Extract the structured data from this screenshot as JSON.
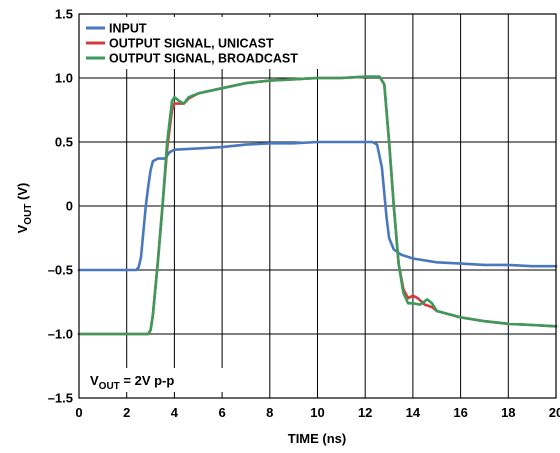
{
  "chart_data": {
    "type": "line",
    "xlabel": "TIME (ns)",
    "ylabel": {
      "main": "V",
      "sub": "OUT",
      "unit": " (V)"
    },
    "xlim": [
      0,
      20
    ],
    "ylim": [
      -1.5,
      1.5
    ],
    "x_ticks": [
      0,
      2,
      4,
      6,
      8,
      10,
      12,
      14,
      16,
      18,
      20
    ],
    "x_tick_labels": [
      "0",
      "2",
      "4",
      "6",
      "8",
      "10",
      "12",
      "14",
      "16",
      "18",
      "20"
    ],
    "y_ticks": [
      -1.5,
      -1.0,
      -0.5,
      0,
      0.5,
      1.0,
      1.5
    ],
    "y_tick_labels": [
      "–1.5",
      "–1.0",
      "–0.5",
      "0",
      "0.5",
      "1.0",
      "1.5"
    ],
    "grid": true,
    "legend_position": "top-left",
    "annotation": {
      "main": "V",
      "sub": "OUT",
      "rest": " = 2V p-p"
    },
    "series": [
      {
        "name": "INPUT",
        "color": "#4a78be",
        "points": [
          [
            0,
            -0.5
          ],
          [
            1.5,
            -0.5
          ],
          [
            2.4,
            -0.5
          ],
          [
            2.5,
            -0.48
          ],
          [
            2.6,
            -0.4
          ],
          [
            2.7,
            -0.2
          ],
          [
            2.8,
            0.0
          ],
          [
            2.9,
            0.15
          ],
          [
            3.0,
            0.28
          ],
          [
            3.1,
            0.35
          ],
          [
            3.3,
            0.37
          ],
          [
            3.6,
            0.37
          ],
          [
            3.8,
            0.42
          ],
          [
            4.0,
            0.44
          ],
          [
            5,
            0.45
          ],
          [
            6,
            0.46
          ],
          [
            7,
            0.48
          ],
          [
            8,
            0.49
          ],
          [
            9,
            0.49
          ],
          [
            10,
            0.5
          ],
          [
            11,
            0.5
          ],
          [
            12,
            0.5
          ],
          [
            12.3,
            0.5
          ],
          [
            12.5,
            0.48
          ],
          [
            12.7,
            0.3
          ],
          [
            12.8,
            0.1
          ],
          [
            12.9,
            -0.1
          ],
          [
            13.0,
            -0.25
          ],
          [
            13.2,
            -0.34
          ],
          [
            13.5,
            -0.38
          ],
          [
            14,
            -0.41
          ],
          [
            15,
            -0.44
          ],
          [
            16,
            -0.45
          ],
          [
            17,
            -0.46
          ],
          [
            18,
            -0.46
          ],
          [
            19,
            -0.47
          ],
          [
            20,
            -0.47
          ]
        ]
      },
      {
        "name": "OUTPUT SIGNAL, UNICAST",
        "color": "#d63c3c",
        "points": [
          [
            0,
            -1.0
          ],
          [
            2,
            -1.0
          ],
          [
            2.9,
            -1.0
          ],
          [
            3.0,
            -0.97
          ],
          [
            3.1,
            -0.85
          ],
          [
            3.3,
            -0.45
          ],
          [
            3.5,
            0.0
          ],
          [
            3.7,
            0.45
          ],
          [
            3.9,
            0.75
          ],
          [
            4.0,
            0.8
          ],
          [
            4.2,
            0.8
          ],
          [
            4.4,
            0.8
          ],
          [
            4.6,
            0.84
          ],
          [
            5,
            0.88
          ],
          [
            6,
            0.92
          ],
          [
            7,
            0.96
          ],
          [
            8,
            0.98
          ],
          [
            9,
            0.99
          ],
          [
            10,
            1.0
          ],
          [
            11,
            1.0
          ],
          [
            12,
            1.01
          ],
          [
            12.6,
            1.01
          ],
          [
            12.8,
            0.95
          ],
          [
            13.0,
            0.5
          ],
          [
            13.2,
            0.0
          ],
          [
            13.4,
            -0.45
          ],
          [
            13.6,
            -0.65
          ],
          [
            13.8,
            -0.72
          ],
          [
            14.0,
            -0.7
          ],
          [
            14.2,
            -0.72
          ],
          [
            14.5,
            -0.77
          ],
          [
            14.8,
            -0.79
          ],
          [
            15,
            -0.82
          ],
          [
            16,
            -0.87
          ],
          [
            17,
            -0.9
          ],
          [
            18,
            -0.92
          ],
          [
            19,
            -0.93
          ],
          [
            20,
            -0.94
          ]
        ]
      },
      {
        "name": "OUTPUT SIGNAL, BROADCAST",
        "color": "#3c9a5a",
        "points": [
          [
            0,
            -1.0
          ],
          [
            2,
            -1.0
          ],
          [
            2.9,
            -1.0
          ],
          [
            3.0,
            -0.97
          ],
          [
            3.1,
            -0.85
          ],
          [
            3.3,
            -0.45
          ],
          [
            3.5,
            0.0
          ],
          [
            3.7,
            0.5
          ],
          [
            3.9,
            0.82
          ],
          [
            4.0,
            0.85
          ],
          [
            4.2,
            0.82
          ],
          [
            4.4,
            0.8
          ],
          [
            4.6,
            0.85
          ],
          [
            5,
            0.88
          ],
          [
            6,
            0.92
          ],
          [
            7,
            0.96
          ],
          [
            8,
            0.98
          ],
          [
            9,
            0.99
          ],
          [
            10,
            1.0
          ],
          [
            11,
            1.0
          ],
          [
            12,
            1.01
          ],
          [
            12.6,
            1.01
          ],
          [
            12.8,
            0.95
          ],
          [
            13.0,
            0.5
          ],
          [
            13.2,
            0.0
          ],
          [
            13.4,
            -0.45
          ],
          [
            13.6,
            -0.68
          ],
          [
            13.8,
            -0.76
          ],
          [
            14.0,
            -0.76
          ],
          [
            14.3,
            -0.77
          ],
          [
            14.6,
            -0.73
          ],
          [
            14.8,
            -0.76
          ],
          [
            15,
            -0.82
          ],
          [
            16,
            -0.87
          ],
          [
            17,
            -0.9
          ],
          [
            18,
            -0.92
          ],
          [
            19,
            -0.93
          ],
          [
            20,
            -0.94
          ]
        ]
      }
    ]
  }
}
